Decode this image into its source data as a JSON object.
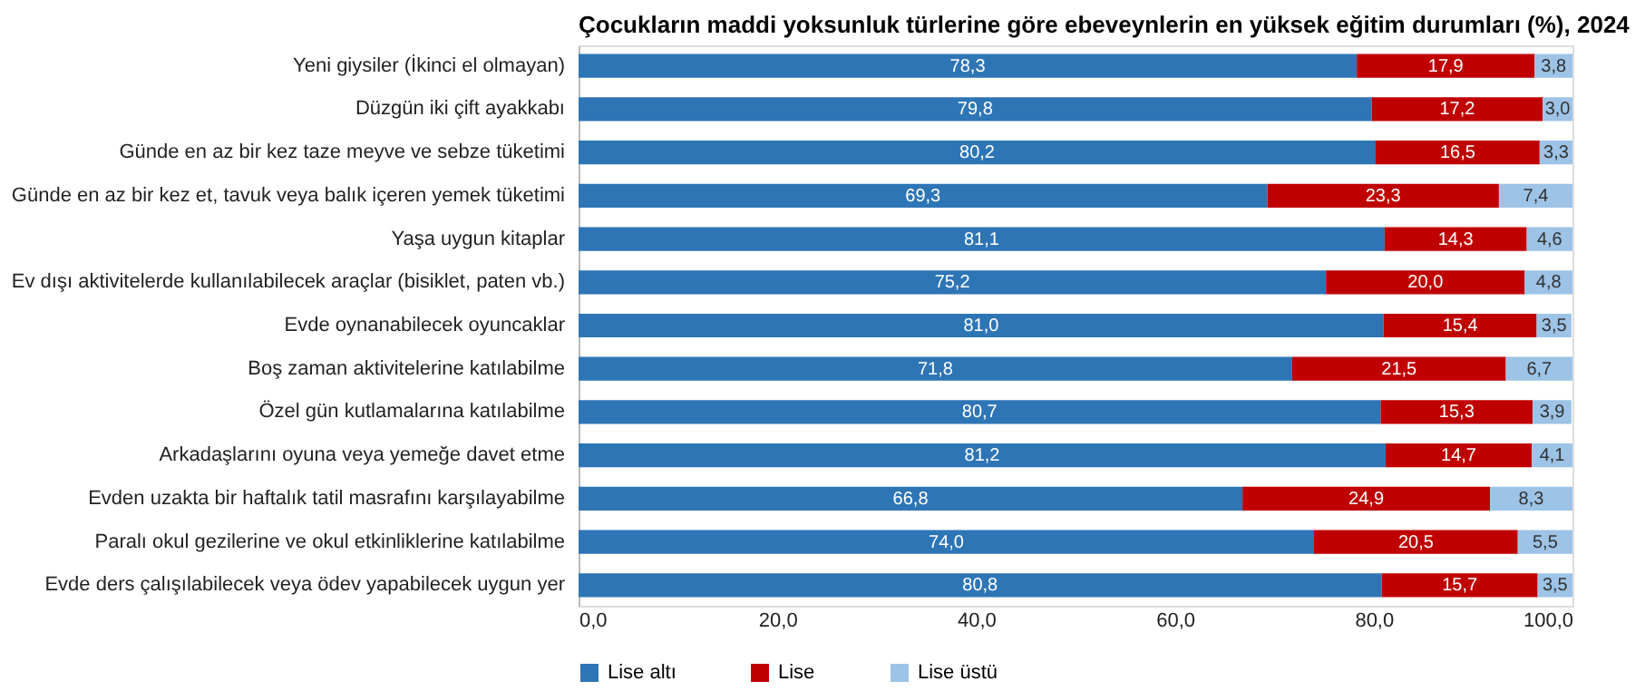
{
  "chart_data": {
    "type": "bar",
    "orientation": "horizontal",
    "stacked": true,
    "title": "Çocukların maddi yoksunluk türlerine göre ebeveynlerin en yüksek eğitim durumları (%), 2024",
    "categories": [
      "Yeni giysiler (İkinci el olmayan)",
      "Düzgün iki çift ayakkabı",
      "Günde en az bir kez taze meyve ve sebze tüketimi",
      "Günde en az bir kez et, tavuk veya balık içeren yemek tüketimi",
      "Yaşa uygun kitaplar",
      "Ev dışı aktivitelerde kullanılabilecek araçlar (bisiklet, paten vb.)",
      "Evde oynanabilecek oyuncaklar",
      "Boş zaman aktivitelerine katılabilme",
      "Özel gün kutlamalarına katılabilme",
      "Arkadaşlarını oyuna veya yemeğe davet etme",
      "Evden uzakta bir haftalık tatil masrafını karşılayabilme",
      "Paralı okul gezilerine ve okul etkinliklerine katılabilme",
      "Evde ders çalışılabilecek veya ödev yapabilecek uygun yer"
    ],
    "series": [
      {
        "name": "Lise altı",
        "color": "#2e75b6",
        "values": [
          78.3,
          79.8,
          80.2,
          69.3,
          81.1,
          75.2,
          81.0,
          71.8,
          80.7,
          81.2,
          66.8,
          74.0,
          80.8
        ],
        "value_labels": [
          "78,3",
          "79,8",
          "80,2",
          "69,3",
          "81,1",
          "75,2",
          "81,0",
          "71,8",
          "80,7",
          "81,2",
          "66,8",
          "74,0",
          "80,8"
        ]
      },
      {
        "name": "Lise",
        "color": "#c00000",
        "values": [
          17.9,
          17.2,
          16.5,
          23.3,
          14.3,
          20.0,
          15.4,
          21.5,
          15.3,
          14.7,
          24.9,
          20.5,
          15.7
        ],
        "value_labels": [
          "17,9",
          "17,2",
          "16,5",
          "23,3",
          "14,3",
          "20,0",
          "15,4",
          "21,5",
          "15,3",
          "14,7",
          "24,9",
          "20,5",
          "15,7"
        ]
      },
      {
        "name": "Lise üstü",
        "color": "#9dc3e6",
        "values": [
          3.8,
          3.0,
          3.3,
          7.4,
          4.6,
          4.8,
          3.5,
          6.7,
          3.9,
          4.1,
          8.3,
          5.5,
          3.5
        ],
        "value_labels": [
          "3,8",
          "3,0",
          "3,3",
          "7,4",
          "4,6",
          "4,8",
          "3,5",
          "6,7",
          "3,9",
          "4,1",
          "8,3",
          "5,5",
          "3,5"
        ]
      }
    ],
    "xlim": [
      0,
      100
    ],
    "xticks": [
      {
        "value": 0,
        "label": "0,0"
      },
      {
        "value": 20,
        "label": "20,0"
      },
      {
        "value": 40,
        "label": "40,0"
      },
      {
        "value": 60,
        "label": "60,0"
      },
      {
        "value": 80,
        "label": "80,0"
      },
      {
        "value": 100,
        "label": "100,0"
      }
    ],
    "grid": false,
    "legend": "bottom"
  }
}
